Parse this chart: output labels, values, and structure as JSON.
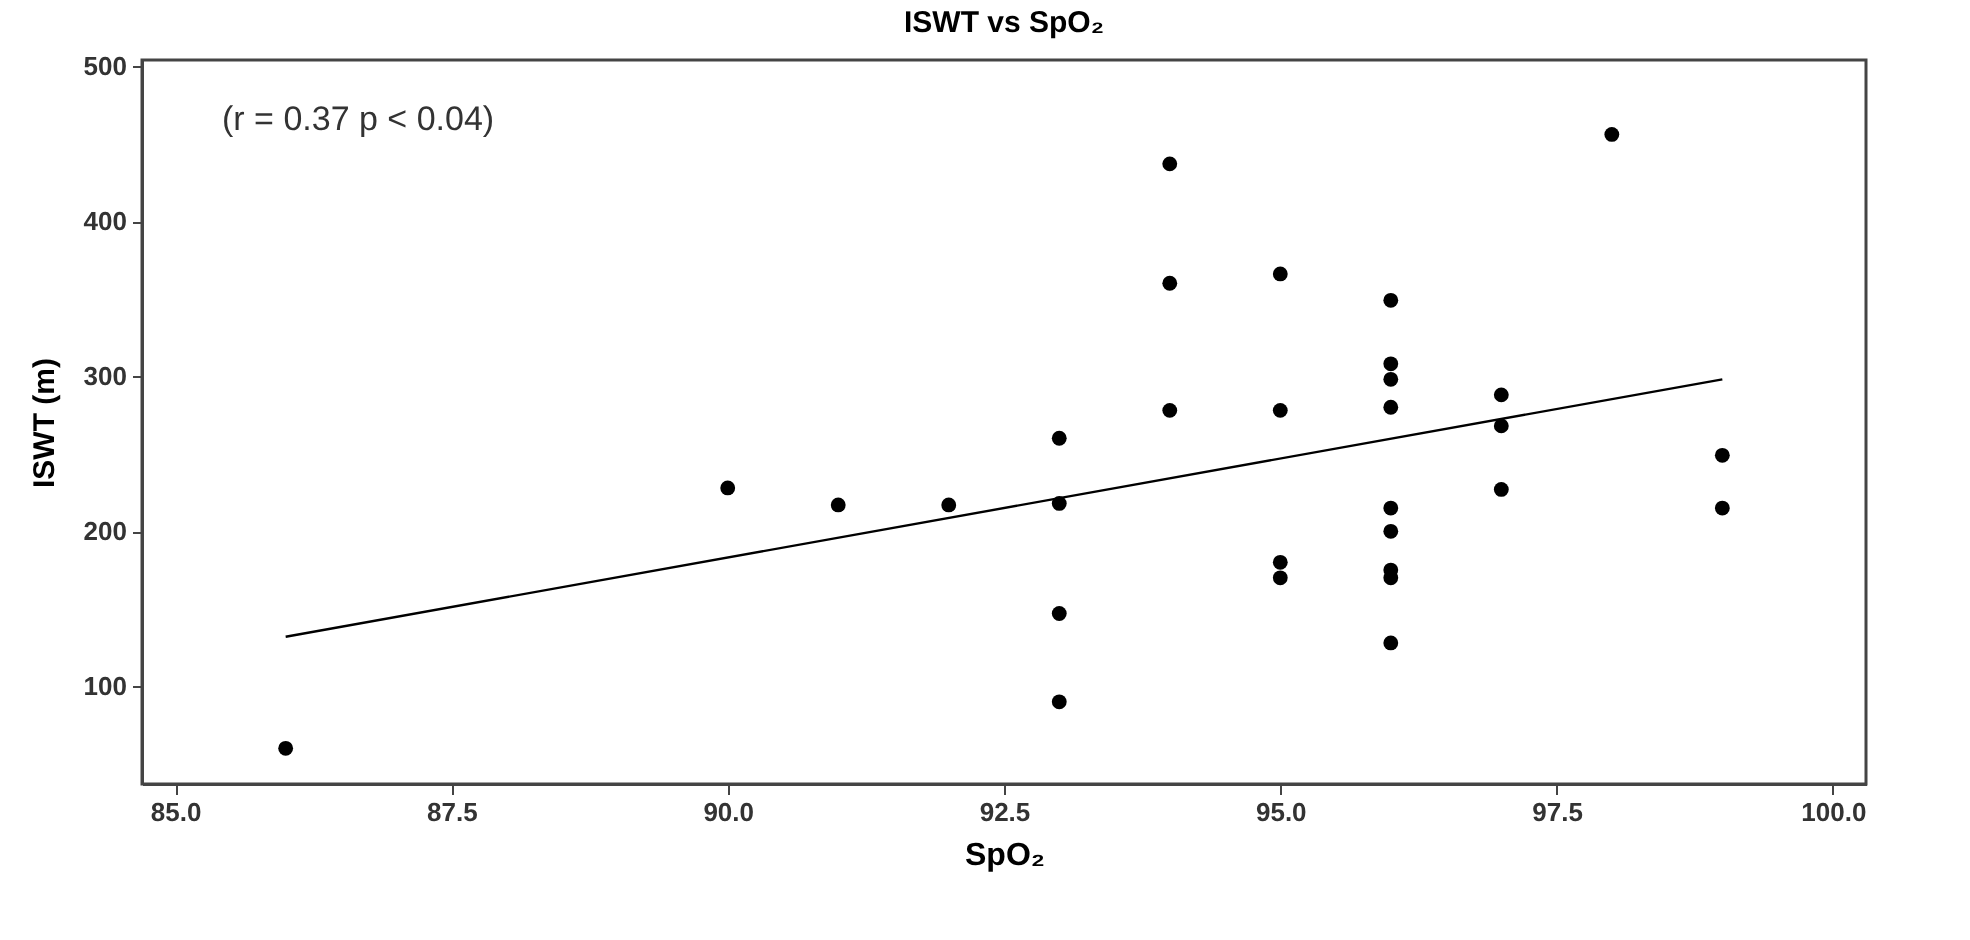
{
  "chart_data": {
    "type": "scatter",
    "title": "ISWT vs SpO₂",
    "xlabel": "SpO₂",
    "ylabel": "ISWT (m)",
    "annotations": [
      "(r = 0.37   p < 0.04)"
    ],
    "xlim": [
      84.7,
      100.3
    ],
    "xticks": [
      {
        "value": 85,
        "label": "85.0"
      },
      {
        "value": 87.5,
        "label": "87.5"
      },
      {
        "value": 90,
        "label": "90.0"
      },
      {
        "value": 92.5,
        "label": "92.5"
      },
      {
        "value": 95,
        "label": "95.0"
      },
      {
        "value": 97.5,
        "label": "97.5"
      },
      {
        "value": 100,
        "label": "100.0"
      }
    ],
    "ylim": [
      37,
      504
    ],
    "yticks": [
      100,
      200,
      300,
      400,
      500
    ],
    "grid": false,
    "series": [
      {
        "color": "#000000",
        "marker": "circle",
        "x": [
          86,
          90,
          91,
          92,
          93,
          93,
          93,
          93,
          94,
          94,
          94,
          95,
          95,
          95,
          95,
          96,
          96,
          96,
          96,
          96,
          96,
          96,
          96,
          96,
          97,
          97,
          97,
          98,
          99,
          99
        ],
        "values": [
          60,
          228,
          217,
          217,
          260,
          218,
          147,
          90,
          437,
          360,
          278,
          366,
          278,
          180,
          170,
          349,
          308,
          298,
          280,
          215,
          200,
          175,
          170,
          128,
          288,
          268,
          227,
          456,
          249,
          215
        ]
      },
      {
        "type": "line",
        "color": "#000000",
        "marker": "none",
        "x": [
          86,
          99
        ],
        "values": [
          132,
          298
        ]
      }
    ]
  }
}
